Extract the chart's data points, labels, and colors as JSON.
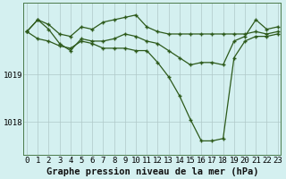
{
  "title": "Graphe pression niveau de la mer (hPa)",
  "bg_color": "#d4f0f0",
  "grid_color": "#b0c8c8",
  "line_color": "#2d5a1b",
  "x_ticks": [
    0,
    1,
    2,
    3,
    4,
    5,
    6,
    7,
    8,
    9,
    10,
    11,
    12,
    13,
    14,
    15,
    16,
    17,
    18,
    19,
    20,
    21,
    22,
    23
  ],
  "y_ticks": [
    1018,
    1019
  ],
  "ylim": [
    1017.3,
    1020.5
  ],
  "xlim": [
    -0.3,
    23.3
  ],
  "line1": [
    1019.9,
    1020.15,
    1020.05,
    1019.85,
    1019.8,
    1020.0,
    1019.95,
    1020.1,
    1020.15,
    1020.2,
    1020.25,
    1020.0,
    1019.9,
    1019.85,
    1019.85,
    1019.85,
    1019.85,
    1019.85,
    1019.85,
    1019.85,
    1019.85,
    1019.9,
    1019.85,
    1019.9
  ],
  "line2": [
    1019.9,
    1020.15,
    1019.95,
    1019.65,
    1019.5,
    1019.75,
    1019.7,
    1019.7,
    1019.75,
    1019.85,
    1019.8,
    1019.7,
    1019.65,
    1019.5,
    1019.35,
    1019.2,
    1019.25,
    1019.25,
    1019.2,
    1019.7,
    1019.8,
    1020.15,
    1019.95,
    1020.0
  ],
  "line3": [
    1019.9,
    1019.75,
    1019.7,
    1019.6,
    1019.55,
    1019.7,
    1019.65,
    1019.55,
    1019.55,
    1019.55,
    1019.5,
    1019.5,
    1019.25,
    1018.95,
    1018.55,
    1018.05,
    1017.6,
    1017.6,
    1017.65,
    1019.35,
    1019.7,
    1019.8,
    1019.8,
    1019.85
  ],
  "title_fontsize": 7.5,
  "tick_fontsize": 6.5,
  "marker": "+",
  "markersize": 3.5,
  "markeredgewidth": 1.0,
  "linewidth": 0.9
}
